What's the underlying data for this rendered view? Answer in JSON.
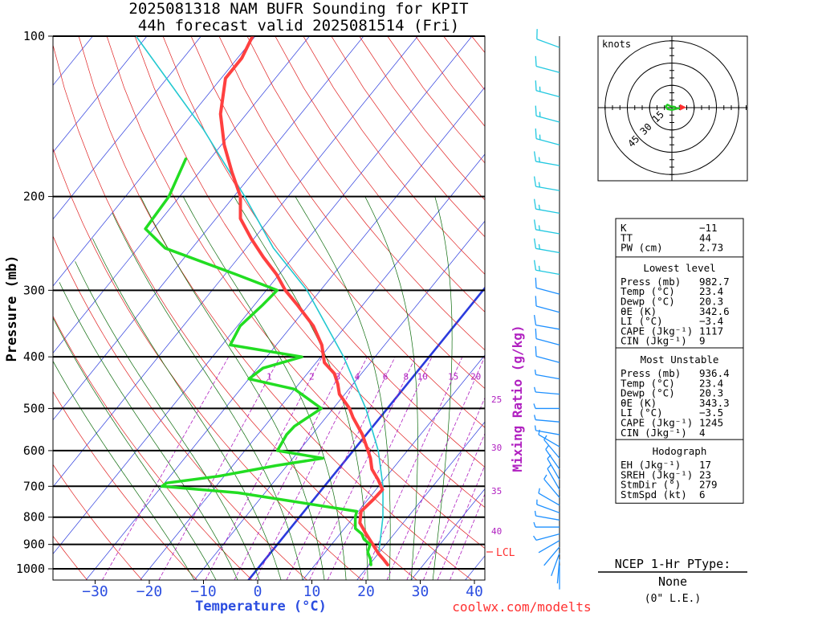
{
  "colors": {
    "temperature": "#ff4040",
    "dewpoint": "#22dd22",
    "isotherm": "#2b3bdd",
    "dry_adiabat": "#e02020",
    "moist_adiabat": "#0a6a0a",
    "mixing_ratio": "#b020c0",
    "parcel": "#22c8d0",
    "zero_isotherm": "#1f3fdf",
    "wind_barb": "#1e90ff",
    "hodograph": "#22cc22",
    "axis": "#000000",
    "url": "#ff3030"
  },
  "header": {
    "title_line1": "2025081318 NAM BUFR Sounding for KPIT",
    "title_line2": "44h forecast valid 2025081514 (Fri)"
  },
  "footer": {
    "url": "coolwx.com/modelts"
  },
  "chart_data": [
    {
      "type": "skew-t log-p",
      "xlabel": "Temperature (°C)",
      "ylabel": "Pressure (mb)",
      "pressure_levels": [
        1000,
        900,
        800,
        700,
        600,
        500,
        400,
        300,
        200,
        100
      ],
      "pressure_tick_labels": [
        "1000",
        "900",
        "800",
        "700",
        "600",
        "500",
        "400",
        "300",
        "200",
        "100"
      ],
      "temperature_ticks": [
        -30,
        -20,
        -10,
        0,
        10,
        20,
        30,
        40
      ],
      "temperature_tick_labels": [
        "−30",
        "−20",
        "−10",
        "0",
        "10",
        "20",
        "30",
        "40"
      ],
      "mixing_ratio_label": "Mixing Ratio (g/kg)",
      "mixing_ratio_values": [
        "1",
        "2",
        "3",
        "4",
        "6",
        "8",
        "10",
        "15",
        "20"
      ],
      "right_scale_labels": [
        "25",
        "30",
        "35",
        "40"
      ],
      "lcl_label": "LCL",
      "lcl_pressure_mb": 936,
      "temperature_profile": [
        {
          "p": 982.7,
          "t": 23.4
        },
        {
          "p": 960,
          "t": 21.8
        },
        {
          "p": 936,
          "t": 20.0
        },
        {
          "p": 900,
          "t": 17.6
        },
        {
          "p": 860,
          "t": 14.8
        },
        {
          "p": 820,
          "t": 12.0
        },
        {
          "p": 780,
          "t": 10.5
        },
        {
          "p": 740,
          "t": 11.0
        },
        {
          "p": 710,
          "t": 11.2
        },
        {
          "p": 680,
          "t": 8.9
        },
        {
          "p": 650,
          "t": 6.2
        },
        {
          "p": 620,
          "t": 4.3
        },
        {
          "p": 600,
          "t": 2.7
        },
        {
          "p": 560,
          "t": -0.7
        },
        {
          "p": 520,
          "t": -5.0
        },
        {
          "p": 500,
          "t": -7.0
        },
        {
          "p": 470,
          "t": -11.0
        },
        {
          "p": 450,
          "t": -12.8
        },
        {
          "p": 430,
          "t": -15.0
        },
        {
          "p": 410,
          "t": -18.5
        },
        {
          "p": 380,
          "t": -21.6
        },
        {
          "p": 350,
          "t": -26.0
        },
        {
          "p": 320,
          "t": -32.0
        },
        {
          "p": 300,
          "t": -36.5
        },
        {
          "p": 280,
          "t": -40.5
        },
        {
          "p": 260,
          "t": -45.5
        },
        {
          "p": 240,
          "t": -50.5
        },
        {
          "p": 220,
          "t": -55.5
        },
        {
          "p": 200,
          "t": -58.8
        },
        {
          "p": 180,
          "t": -64.0
        },
        {
          "p": 160,
          "t": -69.5
        },
        {
          "p": 140,
          "t": -74.8
        },
        {
          "p": 120,
          "t": -79.2
        },
        {
          "p": 110,
          "t": -79.2
        },
        {
          "p": 100,
          "t": -80.5
        }
      ],
      "dewpoint_profile": [
        {
          "p": 982.7,
          "t": 20.3
        },
        {
          "p": 960,
          "t": 19.4
        },
        {
          "p": 930,
          "t": 17.8
        },
        {
          "p": 900,
          "t": 17.1
        },
        {
          "p": 880,
          "t": 15.2
        },
        {
          "p": 860,
          "t": 14.0
        },
        {
          "p": 840,
          "t": 12.0
        },
        {
          "p": 800,
          "t": 10.3
        },
        {
          "p": 780,
          "t": 9.7
        },
        {
          "p": 720,
          "t": -15.0
        },
        {
          "p": 700,
          "t": -30.0
        },
        {
          "p": 690,
          "t": -29.6
        },
        {
          "p": 670,
          "t": -21.0
        },
        {
          "p": 640,
          "t": -12.0
        },
        {
          "p": 620,
          "t": -4.5
        },
        {
          "p": 600,
          "t": -14.0
        },
        {
          "p": 560,
          "t": -14.7
        },
        {
          "p": 540,
          "t": -14.5
        },
        {
          "p": 500,
          "t": -12.2
        },
        {
          "p": 460,
          "t": -20.0
        },
        {
          "p": 440,
          "t": -30.0
        },
        {
          "p": 420,
          "t": -29.0
        },
        {
          "p": 400,
          "t": -23.5
        },
        {
          "p": 380,
          "t": -38.5
        },
        {
          "p": 350,
          "t": -39.5
        },
        {
          "p": 320,
          "t": -38.5
        },
        {
          "p": 300,
          "t": -38.0
        },
        {
          "p": 280,
          "t": -48.0
        },
        {
          "p": 250,
          "t": -65.0
        },
        {
          "p": 230,
          "t": -71.5
        },
        {
          "p": 200,
          "t": -72.0
        },
        {
          "p": 170,
          "t": -74.5
        }
      ],
      "parcel_profile": [
        {
          "p": 982.7,
          "t": 23.4
        },
        {
          "p": 936,
          "t": 20.0
        },
        {
          "p": 900,
          "t": 18.9
        },
        {
          "p": 800,
          "t": 15.4
        },
        {
          "p": 700,
          "t": 10.8
        },
        {
          "p": 600,
          "t": 4.6
        },
        {
          "p": 500,
          "t": -4.0
        },
        {
          "p": 400,
          "t": -15.8
        },
        {
          "p": 300,
          "t": -32.5
        },
        {
          "p": 250,
          "t": -45.0
        },
        {
          "p": 200,
          "t": -58.0
        },
        {
          "p": 150,
          "t": -75.5
        },
        {
          "p": 100,
          "t": -102.0
        }
      ]
    },
    {
      "type": "hodograph",
      "label": "knots",
      "ring_labels": [
        "15",
        "30",
        "45"
      ],
      "ring_speeds_kt": [
        15,
        30,
        45
      ],
      "points_kt": [
        {
          "u": 2,
          "v": 0.5
        },
        {
          "u": -1,
          "v": 1
        },
        {
          "u": -3,
          "v": 2
        },
        {
          "u": -4,
          "v": 1
        },
        {
          "u": -3,
          "v": -1
        },
        {
          "u": 0,
          "v": -1.5
        },
        {
          "u": 4,
          "v": -0.5
        },
        {
          "u": 7,
          "v": 0.2
        }
      ]
    }
  ],
  "wind_barbs": [
    {
      "p": 985,
      "dir": 180,
      "spd": 3
    },
    {
      "p": 960,
      "dir": 185,
      "spd": 4
    },
    {
      "p": 935,
      "dir": 200,
      "spd": 4
    },
    {
      "p": 910,
      "dir": 220,
      "spd": 4
    },
    {
      "p": 885,
      "dir": 240,
      "spd": 4
    },
    {
      "p": 860,
      "dir": 255,
      "spd": 5
    },
    {
      "p": 835,
      "dir": 270,
      "spd": 5
    },
    {
      "p": 810,
      "dir": 280,
      "spd": 5
    },
    {
      "p": 785,
      "dir": 290,
      "spd": 5
    },
    {
      "p": 760,
      "dir": 300,
      "spd": 5
    },
    {
      "p": 735,
      "dir": 320,
      "spd": 5
    },
    {
      "p": 710,
      "dir": 330,
      "spd": 5
    },
    {
      "p": 680,
      "dir": 330,
      "spd": 5
    },
    {
      "p": 650,
      "dir": 325,
      "spd": 5
    },
    {
      "p": 620,
      "dir": 320,
      "spd": 5
    },
    {
      "p": 590,
      "dir": 300,
      "spd": 5
    },
    {
      "p": 560,
      "dir": 280,
      "spd": 5
    },
    {
      "p": 530,
      "dir": 275,
      "spd": 5
    },
    {
      "p": 500,
      "dir": 270,
      "spd": 5
    },
    {
      "p": 470,
      "dir": 275,
      "spd": 5
    },
    {
      "p": 440,
      "dir": 280,
      "spd": 5
    },
    {
      "p": 410,
      "dir": 285,
      "spd": 10
    },
    {
      "p": 380,
      "dir": 285,
      "spd": 10
    },
    {
      "p": 355,
      "dir": 280,
      "spd": 10
    },
    {
      "p": 330,
      "dir": 285,
      "spd": 10
    },
    {
      "p": 305,
      "dir": 285,
      "spd": 10
    },
    {
      "p": 280,
      "dir": 280,
      "spd": 15
    },
    {
      "p": 255,
      "dir": 280,
      "spd": 15
    },
    {
      "p": 235,
      "dir": 280,
      "spd": 15
    },
    {
      "p": 215,
      "dir": 280,
      "spd": 15
    },
    {
      "p": 195,
      "dir": 280,
      "spd": 15
    },
    {
      "p": 175,
      "dir": 280,
      "spd": 15
    },
    {
      "p": 160,
      "dir": 285,
      "spd": 15
    },
    {
      "p": 145,
      "dir": 285,
      "spd": 15
    },
    {
      "p": 130,
      "dir": 285,
      "spd": 15
    },
    {
      "p": 117,
      "dir": 285,
      "spd": 10
    },
    {
      "p": 105,
      "dir": 290,
      "spd": 10
    }
  ],
  "indices": {
    "top": [
      {
        "label": "K",
        "value": "−11"
      },
      {
        "label": "TT",
        "value": "44"
      },
      {
        "label": "PW (cm)",
        "value": "2.73"
      }
    ],
    "lowest_level": {
      "heading": "Lowest level",
      "rows": [
        {
          "label": "Press (mb)",
          "value": "982.7"
        },
        {
          "label": "Temp (°C)",
          "value": "23.4"
        },
        {
          "label": "Dewp (°C)",
          "value": "20.3"
        },
        {
          "label": "θE (K)",
          "value": "342.6"
        },
        {
          "label": "LI (°C)",
          "value": "−3.4"
        },
        {
          "label": "CAPE (Jkg⁻¹)",
          "value": "1117"
        },
        {
          "label": "CIN (Jkg⁻¹)",
          "value": "9"
        }
      ]
    },
    "most_unstable": {
      "heading": "Most Unstable",
      "rows": [
        {
          "label": "Press (mb)",
          "value": "936.4"
        },
        {
          "label": "Temp (°C)",
          "value": "23.4"
        },
        {
          "label": "Dewp (°C)",
          "value": "20.3"
        },
        {
          "label": "θE (K)",
          "value": "343.3"
        },
        {
          "label": "LI (°C)",
          "value": "−3.5"
        },
        {
          "label": "CAPE (Jkg⁻¹)",
          "value": "1245"
        },
        {
          "label": "CIN (Jkg⁻¹)",
          "value": "4"
        }
      ]
    },
    "hodograph": {
      "heading": "Hodograph",
      "rows": [
        {
          "label": "EH (Jkg⁻¹)",
          "value": "17"
        },
        {
          "label": "SREH (Jkg⁻¹)",
          "value": "23"
        },
        {
          "label": "StmDir (°)",
          "value": "279"
        },
        {
          "label": "StmSpd (kt)",
          "value": "6"
        }
      ]
    }
  },
  "ptype": {
    "heading": "NCEP 1-Hr PType:",
    "value": "None",
    "accum": "(0\" L.E.)"
  }
}
